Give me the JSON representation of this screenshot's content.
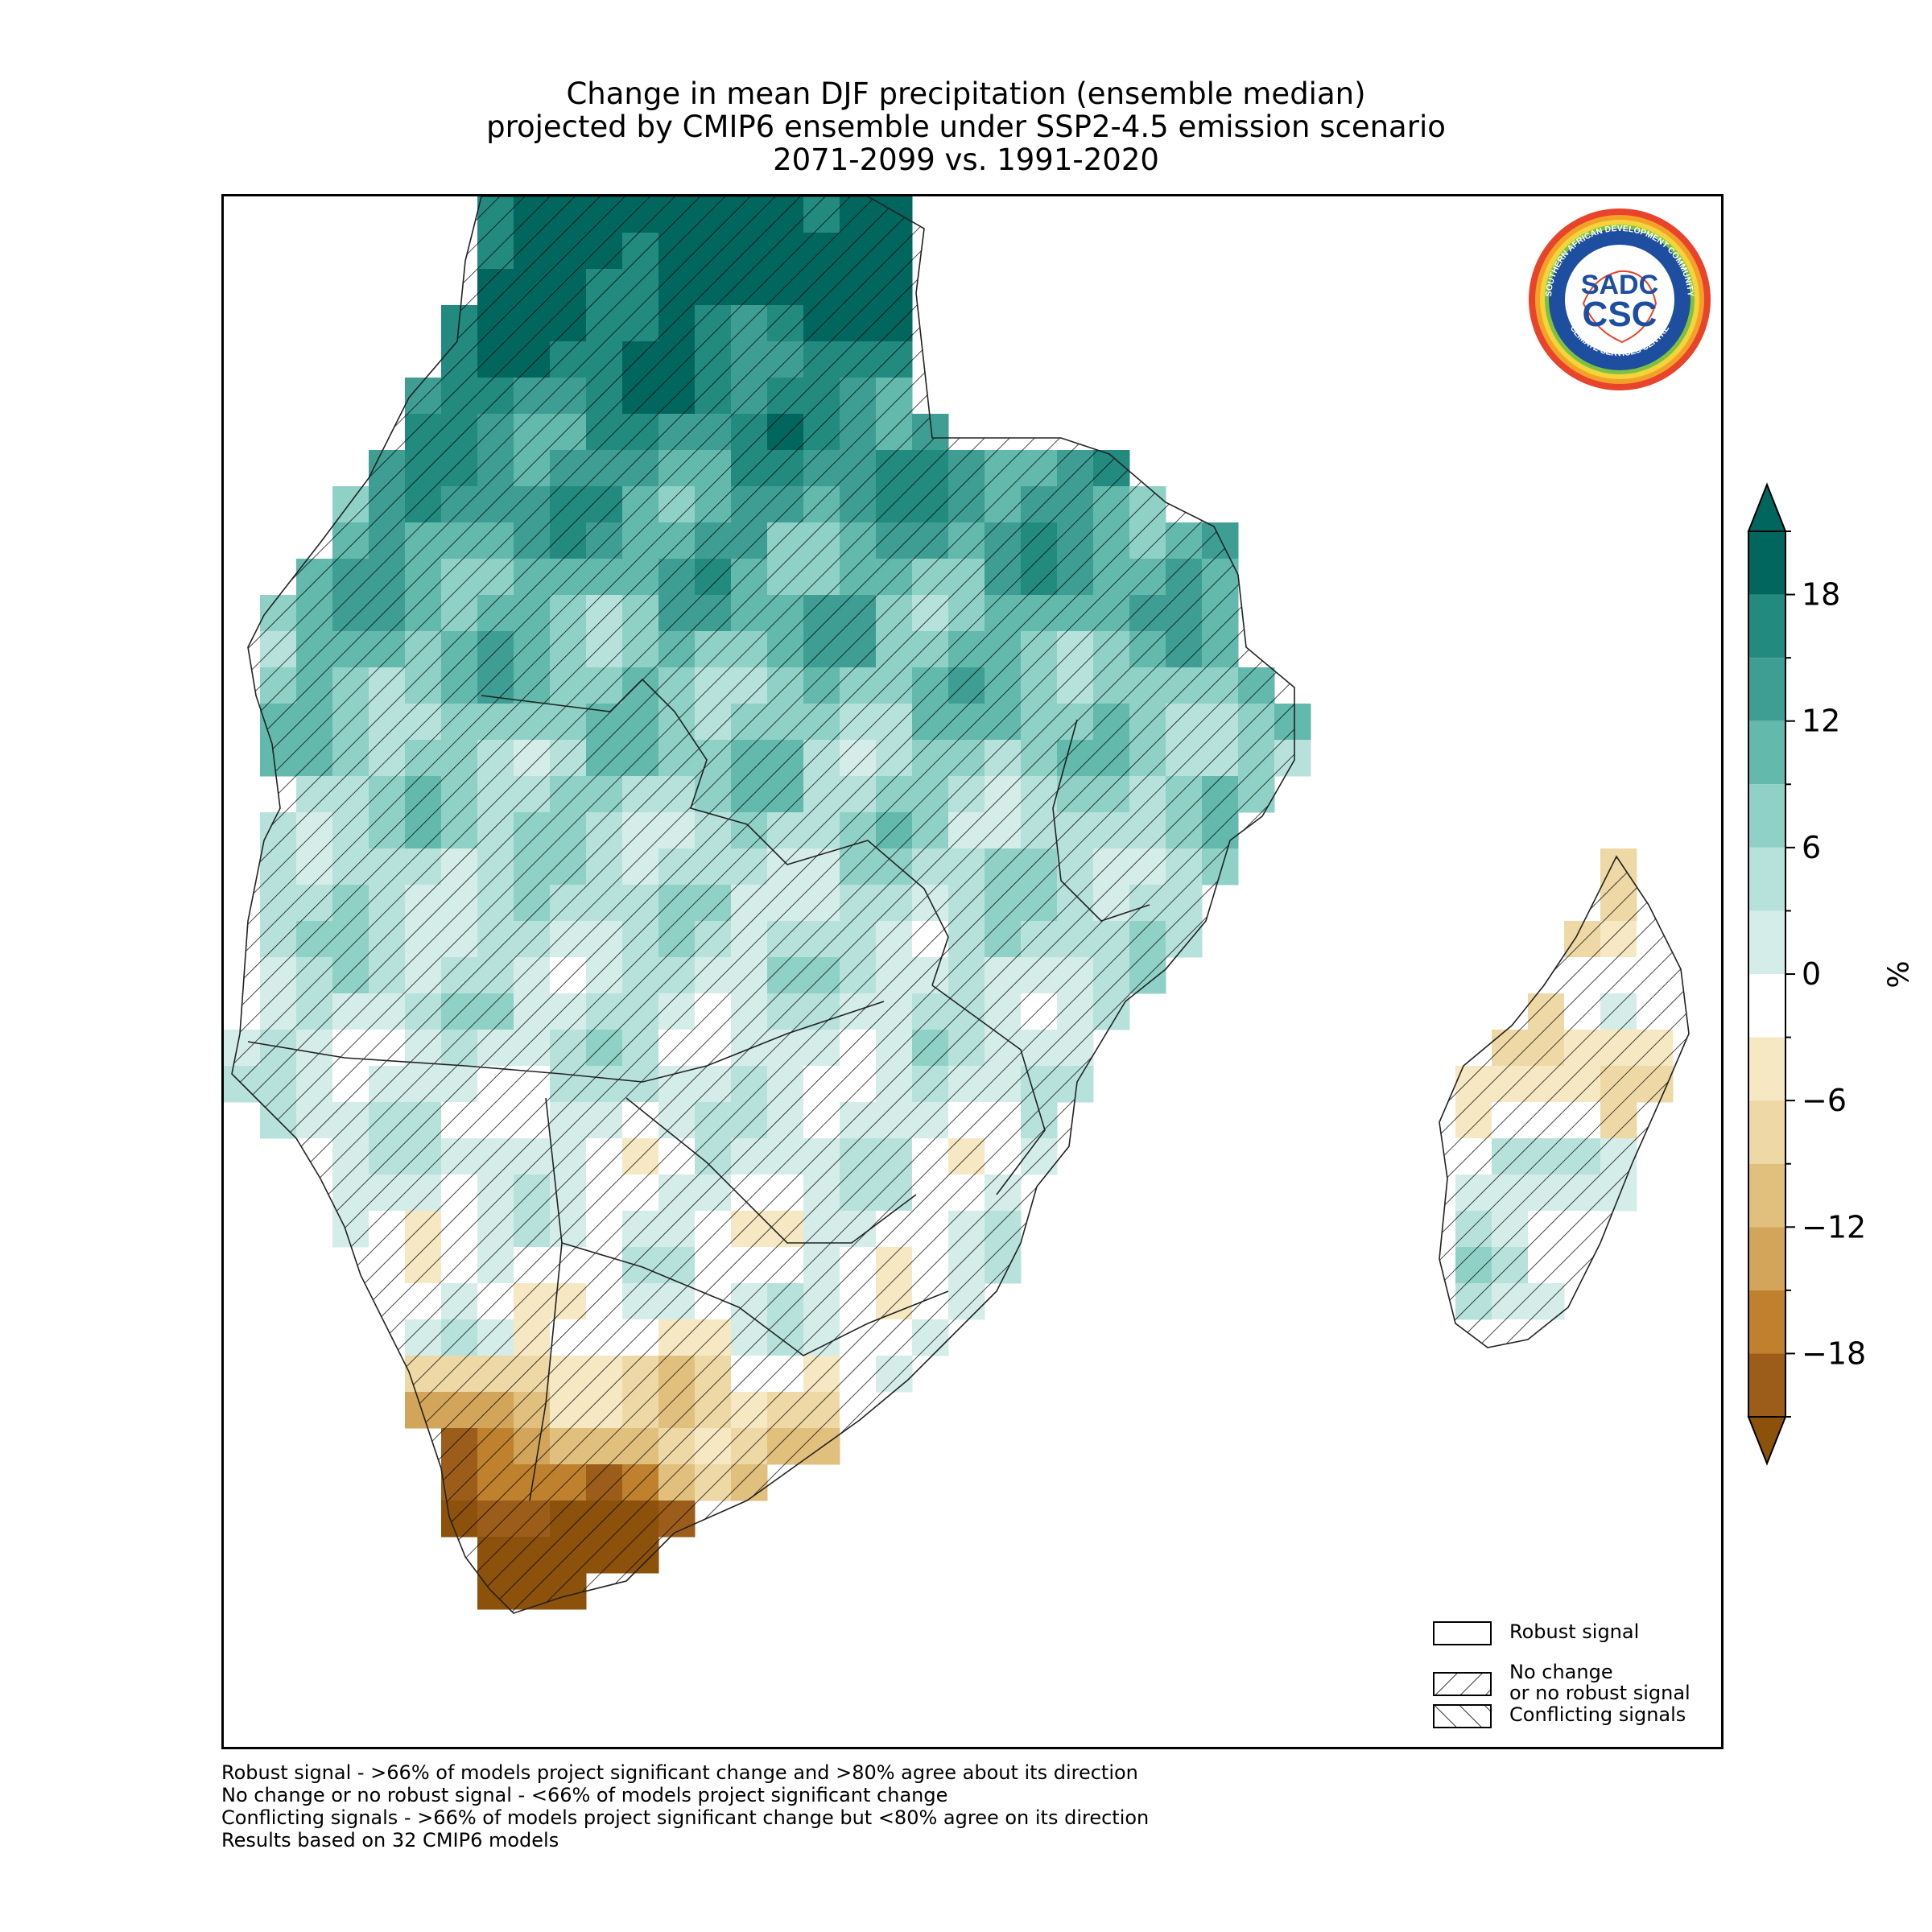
{
  "title": {
    "line1": "Change in mean DJF precipitation (ensemble median)",
    "line2": "projected by CMIP6 ensemble under SSP2-4.5 emission scenario",
    "line3": "2071-2099 vs. 1991-2020"
  },
  "logo": {
    "text_top": "SOUTHERN AFRICAN DEVELOPMENT COMMUNITY",
    "text_bottom": "CLIMATE SERVICES CENTRE",
    "monogram_top": "SADC",
    "monogram_bottom": "CSC",
    "colors": {
      "ring_outer": "#e8432b",
      "ring_mid": "#f4c430",
      "ring_inner": "#1e4ea0",
      "text": "#1e4ea0"
    }
  },
  "legend": {
    "items": [
      {
        "label": "Robust signal",
        "pattern": "none"
      },
      {
        "label": "No change",
        "label2": "or no robust signal",
        "pattern": "forward-hatch"
      },
      {
        "label": "Conflicting signals",
        "pattern": "back-hatch"
      }
    ]
  },
  "footnotes": [
    "Robust signal - >66% of models project significant change and >80% agree about its direction",
    "No change or no robust signal - <66% of models project significant change",
    "Conflicting signals - >66% of models project significant change but <80% agree on its direction",
    "Results based on 32 CMIP6 models"
  ],
  "colorbar": {
    "unit": "%",
    "ticks": [
      18,
      12,
      6,
      0,
      -6,
      -12,
      -18
    ],
    "tick_labels": [
      "18",
      "12",
      "6",
      "0",
      "−6",
      "−12",
      "−18"
    ],
    "levels": [
      {
        "from": 18,
        "to": 21,
        "color": "#01665e"
      },
      {
        "from": 15,
        "to": 18,
        "color": "#238a80"
      },
      {
        "from": 12,
        "to": 15,
        "color": "#3f9e93"
      },
      {
        "from": 9,
        "to": 12,
        "color": "#62b9ac"
      },
      {
        "from": 6,
        "to": 9,
        "color": "#8fd1c6"
      },
      {
        "from": 3,
        "to": 6,
        "color": "#b7e2dc"
      },
      {
        "from": 0,
        "to": 3,
        "color": "#d5ede9"
      },
      {
        "from": -3,
        "to": 0,
        "color": "#ffffff"
      },
      {
        "from": -6,
        "to": -3,
        "color": "#f6e8c3"
      },
      {
        "from": -9,
        "to": -6,
        "color": "#eed9a6"
      },
      {
        "from": -12,
        "to": -9,
        "color": "#e1c07d"
      },
      {
        "from": -15,
        "to": -12,
        "color": "#d2a55a"
      },
      {
        "from": -18,
        "to": -15,
        "color": "#bf812d"
      },
      {
        "from": -21,
        "to": -18,
        "color": "#9c5d1a"
      }
    ],
    "extend_max_color": "#01665e",
    "extend_min_color": "#8c510a"
  },
  "map": {
    "land_colors": {
      "wet_strong": "#01665e",
      "wet_mid": "#3f9e93",
      "wet_light": "#8fd1c6",
      "neutral": "#ffffff",
      "dry_light": "#f6e8c3",
      "dry_mid": "#d2a55a",
      "dry_strong": "#9c5d1a"
    }
  }
}
